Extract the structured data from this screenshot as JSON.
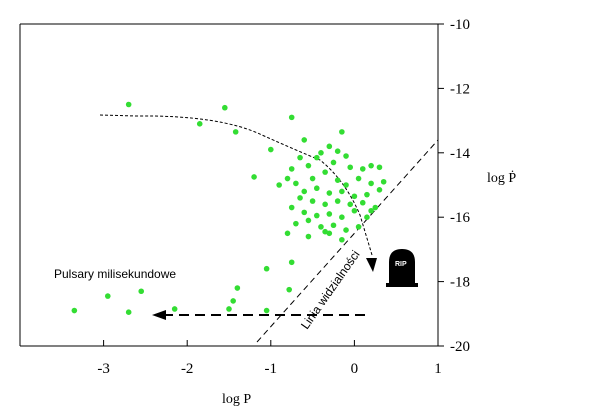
{
  "chart_data": {
    "type": "scatter",
    "xlabel": "log P",
    "ylabel": "log Ṗ",
    "xlim": [
      -4,
      1
    ],
    "ylim": [
      -20,
      -10
    ],
    "x_ticks": [
      -3,
      -2,
      -1,
      0,
      1
    ],
    "x_tick_labels": [
      "-3",
      "-2",
      "-1",
      "0",
      "1"
    ],
    "y_ticks": [
      -20,
      -18,
      -16,
      -14,
      -12,
      -10
    ],
    "y_tick_labels": [
      "-20",
      "-18",
      "-16",
      "-14",
      "-12",
      "-10"
    ],
    "y_axis_side": "right",
    "grid": false,
    "point_color": "#33dd33",
    "series": [
      {
        "points": [
          [
            -2.7,
            -12.5
          ],
          [
            -1.55,
            -12.6
          ],
          [
            -1.85,
            -13.1
          ],
          [
            -1.42,
            -13.35
          ],
          [
            -0.75,
            -12.9
          ],
          [
            -1.0,
            -13.9
          ],
          [
            -1.2,
            -14.75
          ],
          [
            -0.6,
            -13.6
          ],
          [
            -0.15,
            -13.35
          ],
          [
            -0.45,
            -14.15
          ],
          [
            -0.3,
            -13.8
          ],
          [
            -0.2,
            -13.95
          ],
          [
            -0.1,
            -14.1
          ],
          [
            -0.25,
            -14.3
          ],
          [
            -0.05,
            -14.45
          ],
          [
            0.1,
            -14.5
          ],
          [
            0.2,
            -14.4
          ],
          [
            0.3,
            -14.45
          ],
          [
            -0.55,
            -14.4
          ],
          [
            -0.65,
            -14.15
          ],
          [
            -0.75,
            -14.5
          ],
          [
            -0.35,
            -14.6
          ],
          [
            -0.5,
            -14.8
          ],
          [
            -0.2,
            -14.85
          ],
          [
            -0.1,
            -15.0
          ],
          [
            0.05,
            -14.8
          ],
          [
            0.2,
            -14.95
          ],
          [
            0.35,
            -14.9
          ],
          [
            -0.7,
            -14.95
          ],
          [
            -0.6,
            -15.2
          ],
          [
            -0.45,
            -15.1
          ],
          [
            -0.3,
            -15.25
          ],
          [
            -0.15,
            -15.2
          ],
          [
            0.0,
            -15.35
          ],
          [
            0.15,
            -15.3
          ],
          [
            0.3,
            -15.15
          ],
          [
            -0.8,
            -14.8
          ],
          [
            -0.65,
            -15.4
          ],
          [
            -0.5,
            -15.5
          ],
          [
            -0.35,
            -15.6
          ],
          [
            -0.2,
            -15.5
          ],
          [
            -0.05,
            -15.6
          ],
          [
            0.1,
            -15.55
          ],
          [
            0.25,
            -15.7
          ],
          [
            -0.75,
            -15.7
          ],
          [
            -0.6,
            -15.85
          ],
          [
            -0.45,
            -15.95
          ],
          [
            -0.3,
            -15.9
          ],
          [
            -0.15,
            -16.0
          ],
          [
            0.0,
            -15.8
          ],
          [
            0.15,
            -16.0
          ],
          [
            -0.7,
            -16.2
          ],
          [
            -0.55,
            -16.1
          ],
          [
            -0.4,
            -16.3
          ],
          [
            -0.25,
            -16.25
          ],
          [
            -0.1,
            -16.4
          ],
          [
            0.05,
            -16.3
          ],
          [
            -0.8,
            -16.5
          ],
          [
            -0.55,
            -16.6
          ],
          [
            -0.3,
            -16.5
          ],
          [
            -0.15,
            -16.7
          ],
          [
            -0.9,
            -15.0
          ],
          [
            -0.4,
            -14.0
          ],
          [
            0.2,
            -15.8
          ],
          [
            -0.35,
            -16.45
          ],
          [
            -1.05,
            -17.6
          ],
          [
            -0.75,
            -17.4
          ],
          [
            -0.78,
            -18.25
          ],
          [
            -1.4,
            -18.2
          ],
          [
            -1.45,
            -18.6
          ],
          [
            -1.5,
            -18.85
          ],
          [
            -1.05,
            -18.9
          ],
          [
            -2.55,
            -18.3
          ],
          [
            -2.95,
            -18.45
          ],
          [
            -2.15,
            -18.85
          ],
          [
            -2.7,
            -18.95
          ],
          [
            -3.35,
            -18.9
          ]
        ]
      }
    ],
    "annotations": {
      "pulsary": "Pulsary milisekundowe",
      "linia": "Linia widzialności",
      "rip": "RIP"
    }
  }
}
